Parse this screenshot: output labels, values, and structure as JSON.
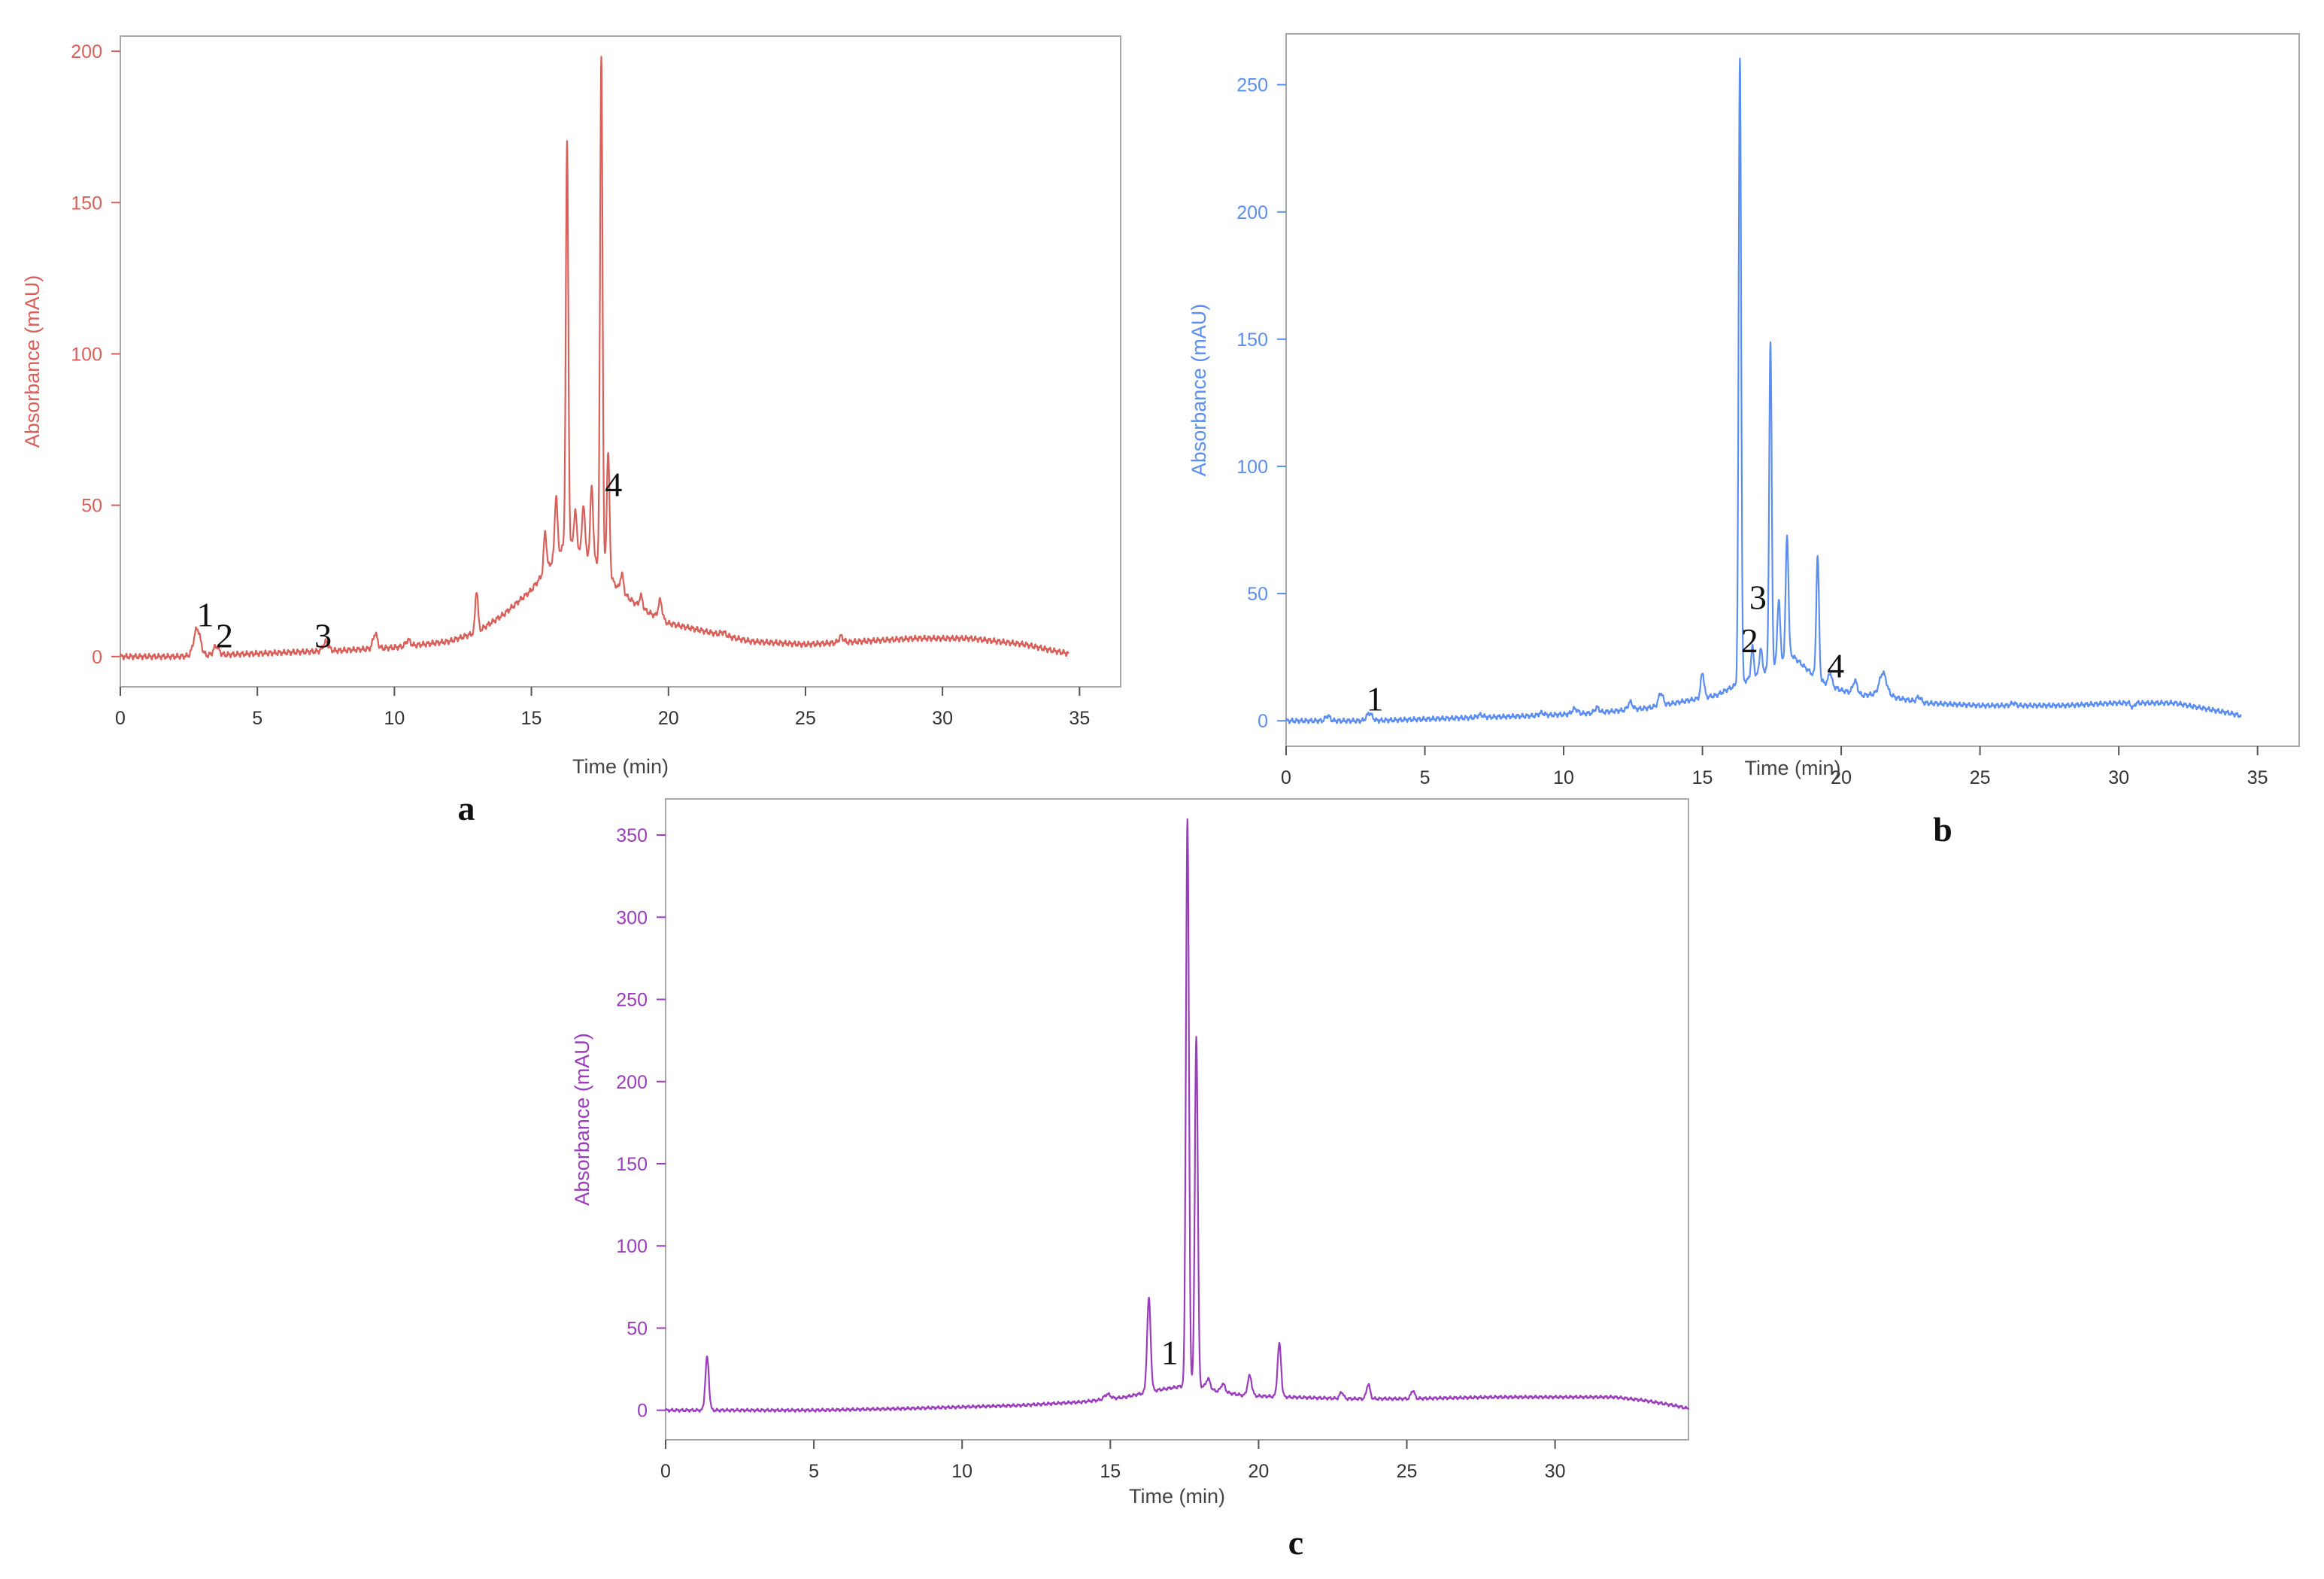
{
  "chart_data": [
    {
      "type": "line",
      "panel_label": "a",
      "xlabel": "Time (min)",
      "ylabel": "Absorbance (mAU)",
      "color": "#d9605a",
      "xlim": [
        0,
        36.5
      ],
      "ylim": [
        -10,
        205
      ],
      "xticks": [
        0,
        5,
        10,
        15,
        20,
        25,
        30,
        35
      ],
      "yticks": [
        0,
        50,
        100,
        150,
        200
      ],
      "baseline": [
        [
          0,
          0
        ],
        [
          2,
          0
        ],
        [
          5,
          1
        ],
        [
          8,
          2
        ],
        [
          10,
          3
        ],
        [
          12,
          5
        ],
        [
          13,
          8
        ],
        [
          14,
          14
        ],
        [
          15,
          22
        ],
        [
          15.8,
          32
        ],
        [
          16.3,
          38
        ],
        [
          17,
          34
        ],
        [
          17.6,
          30
        ],
        [
          18.2,
          22
        ],
        [
          19,
          16
        ],
        [
          20,
          11
        ],
        [
          21,
          9
        ],
        [
          22,
          7
        ],
        [
          23,
          5
        ],
        [
          25,
          4
        ],
        [
          27,
          5
        ],
        [
          29,
          6
        ],
        [
          31,
          6
        ],
        [
          32,
          5
        ],
        [
          33,
          4
        ],
        [
          34,
          2
        ],
        [
          34.6,
          1
        ]
      ],
      "peaks": [
        [
          2.8,
          9,
          0.12
        ],
        [
          3.5,
          3,
          0.1
        ],
        [
          7.5,
          3,
          0.1
        ],
        [
          9.3,
          5,
          0.08
        ],
        [
          10.5,
          2,
          0.08
        ],
        [
          13.0,
          14,
          0.05
        ],
        [
          15.5,
          13,
          0.05
        ],
        [
          15.9,
          20,
          0.05
        ],
        [
          16.3,
          132,
          0.045
        ],
        [
          16.6,
          12,
          0.05
        ],
        [
          16.9,
          16,
          0.05
        ],
        [
          17.2,
          24,
          0.05
        ],
        [
          17.55,
          168,
          0.045
        ],
        [
          17.8,
          40,
          0.05
        ],
        [
          18.3,
          6,
          0.06
        ],
        [
          19.0,
          4,
          0.06
        ],
        [
          19.7,
          6,
          0.07
        ],
        [
          22,
          1,
          0.1
        ],
        [
          26.3,
          2,
          0.08
        ]
      ],
      "annotations": [
        {
          "label": "1",
          "x": 3.1,
          "y": 10
        },
        {
          "label": "2",
          "x": 3.8,
          "y": 3
        },
        {
          "label": "3",
          "x": 7.4,
          "y": 3
        },
        {
          "label": "4",
          "x": 18.0,
          "y": 53
        }
      ]
    },
    {
      "type": "line",
      "panel_label": "b",
      "xlabel": "Time (min)",
      "ylabel": "Absorbance (mAU)",
      "color": "#5b8ef0",
      "xlim": [
        0,
        36.5
      ],
      "ylim": [
        -10,
        270
      ],
      "xticks": [
        0,
        5,
        10,
        15,
        20,
        25,
        30,
        35
      ],
      "yticks": [
        0,
        50,
        100,
        150,
        200,
        250
      ],
      "baseline": [
        [
          0,
          0
        ],
        [
          3,
          0
        ],
        [
          6,
          1
        ],
        [
          9,
          2
        ],
        [
          11,
          3
        ],
        [
          13,
          5
        ],
        [
          14.5,
          8
        ],
        [
          15.5,
          10
        ],
        [
          16.2,
          14
        ],
        [
          17,
          18
        ],
        [
          17.6,
          22
        ],
        [
          18.2,
          26
        ],
        [
          18.6,
          22
        ],
        [
          19.2,
          16
        ],
        [
          20,
          12
        ],
        [
          20.8,
          10
        ],
        [
          21.6,
          11
        ],
        [
          22,
          9
        ],
        [
          23,
          7
        ],
        [
          25,
          6
        ],
        [
          28,
          6
        ],
        [
          30,
          7
        ],
        [
          31,
          7
        ],
        [
          32,
          7
        ],
        [
          33,
          5
        ],
        [
          34,
          3
        ],
        [
          34.4,
          2
        ]
      ],
      "peaks": [
        [
          1.5,
          2,
          0.08
        ],
        [
          3.0,
          3,
          0.1
        ],
        [
          7.0,
          1,
          0.1
        ],
        [
          9.2,
          1,
          0.1
        ],
        [
          10.4,
          2,
          0.1
        ],
        [
          11.2,
          2,
          0.08
        ],
        [
          12.4,
          3,
          0.08
        ],
        [
          13.5,
          5,
          0.08
        ],
        [
          15.0,
          10,
          0.06
        ],
        [
          16.35,
          246,
          0.045
        ],
        [
          16.8,
          12,
          0.05
        ],
        [
          17.1,
          10,
          0.05
        ],
        [
          17.45,
          128,
          0.045
        ],
        [
          17.75,
          25,
          0.05
        ],
        [
          18.05,
          48,
          0.05
        ],
        [
          19.15,
          48,
          0.05
        ],
        [
          19.6,
          5,
          0.06
        ],
        [
          20.5,
          5,
          0.08
        ],
        [
          21.5,
          8,
          0.12
        ],
        [
          22.8,
          2,
          0.08
        ],
        [
          26.2,
          1,
          0.08
        ],
        [
          30.5,
          -2,
          0.05
        ]
      ],
      "annotations": [
        {
          "label": "1",
          "x": 3.2,
          "y": 4
        },
        {
          "label": "2",
          "x": 16.7,
          "y": 27
        },
        {
          "label": "3",
          "x": 17.0,
          "y": 44
        },
        {
          "label": "4",
          "x": 19.8,
          "y": 17
        }
      ]
    },
    {
      "type": "line",
      "panel_label": "c",
      "xlabel": "Time (min)",
      "ylabel": "Absorbance (mAU)",
      "color": "#9b3cbd",
      "xlim": [
        0,
        34.5
      ],
      "ylim": [
        -18,
        372
      ],
      "xticks": [
        0,
        5,
        10,
        15,
        20,
        25,
        30
      ],
      "yticks": [
        0,
        50,
        100,
        150,
        200,
        250,
        300,
        350
      ],
      "baseline": [
        [
          0,
          0
        ],
        [
          2,
          0
        ],
        [
          5,
          0
        ],
        [
          8,
          1
        ],
        [
          10,
          2
        ],
        [
          12,
          3
        ],
        [
          14,
          5
        ],
        [
          15.5,
          8
        ],
        [
          16.5,
          12
        ],
        [
          17.2,
          14
        ],
        [
          17.8,
          16
        ],
        [
          18.5,
          12
        ],
        [
          19.5,
          9
        ],
        [
          21,
          8
        ],
        [
          23,
          7
        ],
        [
          25,
          7
        ],
        [
          28,
          8
        ],
        [
          32,
          8
        ],
        [
          33,
          6
        ],
        [
          34,
          3
        ],
        [
          34.5,
          1
        ]
      ],
      "peaks": [
        [
          1.4,
          32,
          0.06
        ],
        [
          14.9,
          3,
          0.1
        ],
        [
          16.3,
          57,
          0.06
        ],
        [
          17.6,
          345,
          0.05
        ],
        [
          17.9,
          212,
          0.05
        ],
        [
          18.3,
          6,
          0.07
        ],
        [
          18.8,
          5,
          0.07
        ],
        [
          19.7,
          12,
          0.07
        ],
        [
          20.7,
          32,
          0.06
        ],
        [
          22.8,
          4,
          0.06
        ],
        [
          23.7,
          9,
          0.06
        ],
        [
          25.2,
          5,
          0.06
        ]
      ],
      "annotations": [
        {
          "label": "1",
          "x": 17.0,
          "y": 28
        }
      ]
    }
  ]
}
